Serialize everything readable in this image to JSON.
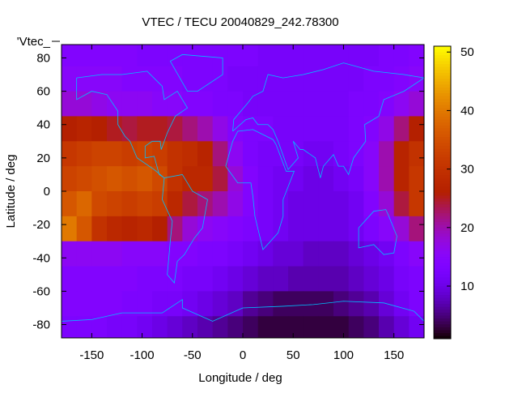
{
  "chart_data": {
    "type": "heatmap",
    "title": "VTEC / TECU 20040829_242.78300",
    "xlabel": "Longitude / deg",
    "ylabel": "Latitude / deg",
    "legend": "'Vtec_",
    "legend_placement": "top-left",
    "xlim": [
      -180,
      180
    ],
    "ylim": [
      -88,
      88
    ],
    "xticks": [
      -150,
      -100,
      -50,
      0,
      50,
      100,
      150
    ],
    "yticks": [
      -80,
      -60,
      -40,
      -20,
      0,
      20,
      40,
      60,
      80
    ],
    "colorbar": {
      "range": [
        1,
        51
      ],
      "ticks": [
        10,
        20,
        30,
        40,
        50
      ],
      "palette": "black-purple-red-orange-yellow"
    },
    "grid": false,
    "overlay": "coastlines (cyan)",
    "overlay_color": "#00c0ff",
    "lon_centers": [
      -172.5,
      -157.5,
      -142.5,
      -127.5,
      -112.5,
      -97.5,
      -82.5,
      -67.5,
      -52.5,
      -37.5,
      -22.5,
      -7.5,
      7.5,
      22.5,
      37.5,
      52.5,
      67.5,
      82.5,
      97.5,
      112.5,
      127.5,
      142.5,
      157.5,
      172.5
    ],
    "lat_centers": [
      82.5,
      67.5,
      52.5,
      37.5,
      22.5,
      7.5,
      -7.5,
      -22.5,
      -37.5,
      -52.5,
      -67.5,
      -82.5
    ],
    "values": [
      [
        14,
        14,
        14,
        14,
        14,
        13,
        13,
        13,
        13,
        13,
        13,
        13,
        13,
        12,
        12,
        12,
        12,
        12,
        12,
        12,
        12,
        13,
        13,
        14
      ],
      [
        15,
        15,
        15,
        15,
        14,
        14,
        14,
        14,
        13,
        13,
        13,
        12,
        12,
        12,
        12,
        12,
        12,
        12,
        12,
        12,
        13,
        13,
        14,
        15
      ],
      [
        18,
        18,
        17,
        16,
        16,
        16,
        15,
        15,
        14,
        14,
        13,
        13,
        12,
        12,
        12,
        12,
        12,
        12,
        12,
        13,
        13,
        14,
        16,
        18
      ],
      [
        26,
        27,
        26,
        25,
        24,
        25,
        25,
        24,
        22,
        20,
        17,
        14,
        13,
        13,
        12,
        12,
        12,
        12,
        12,
        13,
        14,
        17,
        22,
        26
      ],
      [
        31,
        32,
        33,
        33,
        32,
        33,
        32,
        30,
        29,
        27,
        22,
        16,
        13,
        12,
        12,
        12,
        11,
        11,
        12,
        13,
        15,
        20,
        27,
        30
      ],
      [
        33,
        34,
        35,
        36,
        35,
        36,
        34,
        30,
        28,
        28,
        24,
        18,
        14,
        12,
        11,
        11,
        10,
        10,
        11,
        12,
        15,
        20,
        27,
        31
      ],
      [
        36,
        38,
        34,
        33,
        32,
        33,
        32,
        28,
        24,
        22,
        20,
        17,
        14,
        12,
        11,
        10,
        10,
        10,
        10,
        11,
        14,
        18,
        24,
        31
      ],
      [
        40,
        36,
        30,
        28,
        27,
        28,
        26,
        22,
        18,
        16,
        15,
        14,
        13,
        12,
        11,
        10,
        10,
        10,
        10,
        11,
        13,
        15,
        18,
        22
      ],
      [
        16,
        16,
        16,
        16,
        15,
        15,
        15,
        14,
        14,
        13,
        13,
        12,
        11,
        10,
        9,
        9,
        8,
        8,
        8,
        9,
        10,
        11,
        13,
        15
      ],
      [
        14,
        14,
        14,
        14,
        14,
        13,
        13,
        13,
        12,
        12,
        11,
        10,
        9,
        8,
        8,
        7,
        7,
        7,
        7,
        8,
        9,
        10,
        12,
        13
      ],
      [
        14,
        14,
        14,
        14,
        13,
        13,
        12,
        12,
        11,
        10,
        9,
        8,
        6,
        5,
        4,
        4,
        4,
        4,
        5,
        6,
        7,
        9,
        11,
        13
      ],
      [
        13,
        13,
        13,
        12,
        12,
        11,
        10,
        9,
        8,
        7,
        6,
        5,
        4,
        3,
        3,
        3,
        3,
        3,
        3,
        4,
        5,
        7,
        9,
        11
      ]
    ]
  }
}
